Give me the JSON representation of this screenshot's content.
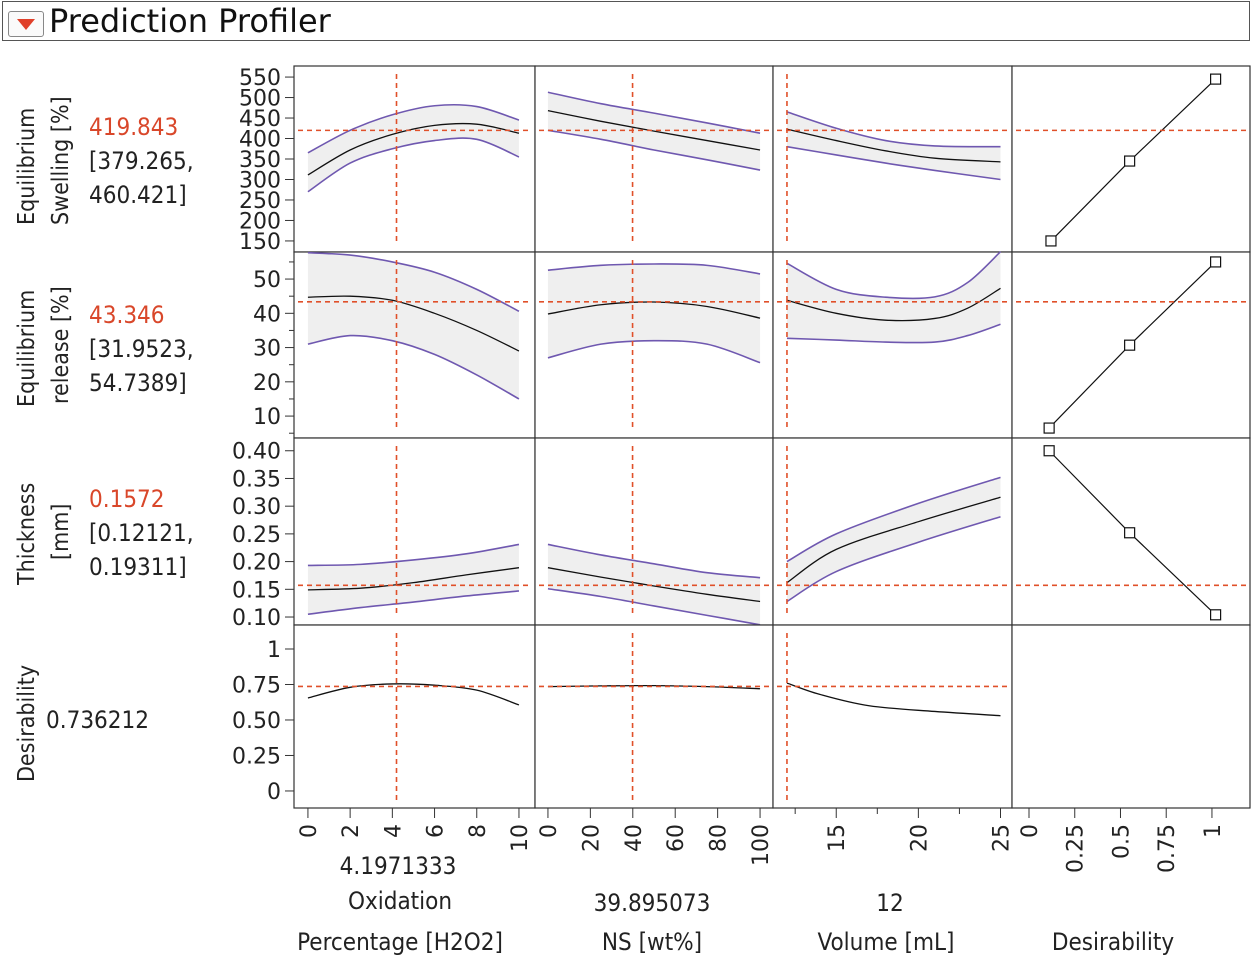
{
  "header": {
    "title": "Prediction Profiler",
    "menu_icon": "red-triangle-menu-icon"
  },
  "colors": {
    "band": "#efefef",
    "bound": "#6f58b0",
    "mean": "#111111",
    "reference": "#e0502a",
    "value": "#d9472a"
  },
  "responses": [
    {
      "title1": "Equilibrium",
      "title2": "Swelling [%]",
      "value": "419.843",
      "ci1": "[379.265,",
      "ci2": "460.421]"
    },
    {
      "title1": "Equilibrium",
      "title2": "release [%]",
      "value": "43.346",
      "ci1": "[31.9523,",
      "ci2": "54.7389]"
    },
    {
      "title1": "Thickness",
      "title2": "[mm]",
      "value": "0.1572",
      "ci1": "[0.12121,",
      "ci2": "0.19311]"
    },
    {
      "title1": "Desirability",
      "title2": "",
      "value": "0.736212",
      "ci1": "",
      "ci2": ""
    }
  ],
  "factors": [
    {
      "value": "4.1971333",
      "label1": "Oxidation",
      "label2": "Percentage [H2O2]"
    },
    {
      "value": "39.895073",
      "label1": "",
      "label2": "NS [wt%]"
    },
    {
      "value": "12",
      "label1": "",
      "label2": "Volume [mL]"
    },
    {
      "value": "",
      "label1": "",
      "label2": "Desirability"
    }
  ],
  "chart_data": {
    "type": "line",
    "title": "Prediction Profiler",
    "grid": false,
    "current": {
      "factors": [
        4.1971333,
        39.895073,
        12
      ],
      "responses": [
        419.843,
        43.346,
        0.1572,
        0.736212
      ]
    },
    "x_axes": [
      {
        "label": "Oxidation Percentage [H2O2]",
        "ticks": [
          "0",
          "2",
          "4",
          "6",
          "8",
          "10"
        ],
        "tickvals": [
          0,
          2,
          4,
          6,
          8,
          10
        ],
        "range": [
          -0.66,
          10.76
        ]
      },
      {
        "label": "NS [wt%]",
        "ticks": [
          "0",
          "20",
          "40",
          "60",
          "80",
          "100"
        ],
        "tickvals": [
          0,
          20,
          40,
          60,
          80,
          100
        ],
        "range": [
          -6.1,
          106.1
        ]
      },
      {
        "label": "Volume [mL]",
        "ticks": [
          "15",
          "20",
          "25"
        ],
        "tickvals": [
          15,
          20,
          25
        ],
        "minor": [
          12.5,
          17.5,
          22.5
        ],
        "range": [
          11.15,
          25.7
        ]
      },
      {
        "label": "Desirability",
        "ticks": [
          "0",
          "0.25",
          "0.5",
          "0.75",
          "1"
        ],
        "tickvals": [
          0,
          0.25,
          0.5,
          0.75,
          1
        ],
        "range": [
          -0.093,
          1.208
        ]
      }
    ],
    "y_axes": [
      {
        "ticks": [
          "550",
          "500",
          "450",
          "400",
          "350",
          "300",
          "250",
          "200",
          "150"
        ],
        "tickvals": [
          550,
          500,
          450,
          400,
          350,
          300,
          250,
          200,
          150
        ],
        "range": [
          123,
          577
        ]
      },
      {
        "ticks": [
          "50",
          "40",
          "30",
          "20",
          "10"
        ],
        "tickvals": [
          50,
          40,
          30,
          20,
          10
        ],
        "minor": [
          55,
          45,
          35,
          25,
          15,
          5
        ],
        "range": [
          3.6,
          57.9
        ]
      },
      {
        "ticks": [
          "0.40",
          "0.35",
          "0.30",
          "0.25",
          "0.20",
          "0.15",
          "0.10"
        ],
        "tickvals": [
          0.4,
          0.35,
          0.3,
          0.25,
          0.2,
          0.15,
          0.1
        ],
        "range": [
          0.0856,
          0.423
        ]
      },
      {
        "ticks": [
          "1",
          "0.75",
          "0.50",
          "0.25",
          "0"
        ],
        "tickvals": [
          1,
          0.75,
          0.5,
          0.25,
          0
        ],
        "range": [
          -0.12,
          1.169
        ]
      }
    ],
    "profiles": [
      [
        {
          "x": [
            0,
            2,
            4,
            6,
            8,
            10
          ],
          "mean": [
            311,
            372,
            410,
            432,
            435,
            413
          ],
          "lower": [
            270,
            340,
            375,
            395,
            398,
            355
          ],
          "upper": [
            365,
            420,
            458,
            480,
            478,
            445
          ]
        },
        {
          "x": [
            0,
            25,
            50,
            75,
            100
          ],
          "mean": [
            468,
            442,
            418,
            395,
            372
          ],
          "lower": [
            420,
            398,
            372,
            348,
            323
          ],
          "upper": [
            513,
            485,
            462,
            438,
            413
          ]
        },
        {
          "x": [
            12,
            15,
            18,
            21,
            25
          ],
          "mean": [
            423,
            395,
            370,
            352,
            343
          ],
          "lower": [
            380,
            360,
            340,
            322,
            300
          ],
          "upper": [
            465,
            425,
            395,
            382,
            380
          ]
        },
        {
          "desirability": [
            0.12,
            0.55,
            1.02
          ],
          "response": [
            150,
            345,
            545
          ]
        }
      ],
      [
        {
          "x": [
            0,
            2,
            4,
            6,
            8,
            10
          ],
          "mean": [
            44.7,
            45,
            43.8,
            40,
            35,
            29
          ],
          "lower": [
            31,
            33.5,
            32,
            28,
            22,
            15
          ],
          "upper": [
            57.7,
            57,
            55,
            52,
            47,
            40.6
          ]
        },
        {
          "x": [
            0,
            25,
            50,
            75,
            100
          ],
          "mean": [
            39.8,
            42.5,
            43.3,
            42,
            38.6
          ],
          "lower": [
            27,
            31,
            32,
            31,
            25.6
          ],
          "upper": [
            52.6,
            54,
            54.4,
            54,
            51.5
          ]
        },
        {
          "x": [
            12,
            15,
            18,
            21,
            23,
            25
          ],
          "mean": [
            43.8,
            40,
            38,
            38.5,
            41.5,
            47.3
          ],
          "lower": [
            32.7,
            32.2,
            31.6,
            31.6,
            33.5,
            36.8
          ],
          "upper": [
            54.6,
            47,
            44.7,
            44.8,
            49,
            58
          ]
        },
        {
          "desirability": [
            0.11,
            0.55,
            1.02
          ],
          "response": [
            6.5,
            30.7,
            55
          ]
        }
      ],
      [
        {
          "x": [
            0,
            2.5,
            5,
            7.5,
            10
          ],
          "mean": [
            0.149,
            0.152,
            0.162,
            0.176,
            0.189
          ],
          "lower": [
            0.105,
            0.117,
            0.127,
            0.138,
            0.147
          ],
          "upper": [
            0.193,
            0.195,
            0.203,
            0.214,
            0.231
          ]
        },
        {
          "x": [
            0,
            25,
            50,
            75,
            100
          ],
          "mean": [
            0.189,
            0.172,
            0.156,
            0.141,
            0.128
          ],
          "lower": [
            0.151,
            0.137,
            0.12,
            0.103,
            0.086
          ],
          "upper": [
            0.231,
            0.212,
            0.196,
            0.18,
            0.171
          ]
        },
        {
          "x": [
            12,
            15,
            20,
            25
          ],
          "mean": [
            0.162,
            0.222,
            0.272,
            0.316
          ],
          "lower": [
            0.128,
            0.182,
            0.235,
            0.281
          ],
          "upper": [
            0.2,
            0.25,
            0.305,
            0.352
          ]
        },
        {
          "desirability": [
            0.11,
            0.55,
            1.02
          ],
          "response": [
            0.4,
            0.252,
            0.104
          ]
        }
      ],
      [
        {
          "x": [
            0,
            2,
            4,
            6,
            8,
            10
          ],
          "mean": [
            0.655,
            0.73,
            0.754,
            0.745,
            0.71,
            0.606
          ]
        },
        {
          "x": [
            0,
            25,
            50,
            75,
            100
          ],
          "mean": [
            0.735,
            0.74,
            0.742,
            0.735,
            0.72
          ]
        },
        {
          "x": [
            12,
            14,
            17,
            21,
            25
          ],
          "mean": [
            0.76,
            0.68,
            0.6,
            0.56,
            0.53
          ]
        },
        null
      ]
    ]
  }
}
